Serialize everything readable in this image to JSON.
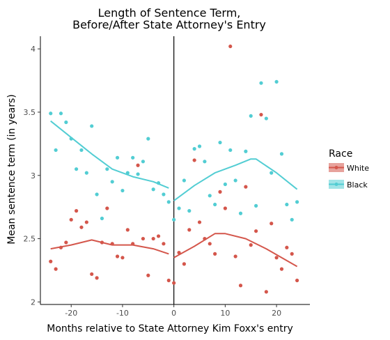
{
  "chart_data": {
    "type": "scatter",
    "title": [
      "Length of Sentence Term,",
      "Before/After State Attorney's Entry"
    ],
    "xlabel": "Months relative to State Attorney Kim Foxx's entry",
    "ylabel": "Mean sentence term (in years)",
    "xlim": [
      -26,
      26.5
    ],
    "ylim": [
      1.98,
      4.1
    ],
    "xticks": [
      -20,
      -10,
      0,
      10,
      20
    ],
    "yticks": [
      2,
      2.5,
      3,
      3.5,
      4
    ],
    "ytick_labels": [
      "2",
      "2.5",
      "3",
      "3.5",
      "4"
    ],
    "vline_x": 0,
    "grid": false,
    "legend": {
      "title": "Race",
      "position": "right"
    },
    "series": [
      {
        "name": "White",
        "color": "#d4564b",
        "points": [
          [
            -24,
            2.32
          ],
          [
            -23,
            2.26
          ],
          [
            -22,
            2.43
          ],
          [
            -21,
            2.47
          ],
          [
            -20,
            2.65
          ],
          [
            -19,
            2.72
          ],
          [
            -18,
            2.59
          ],
          [
            -17,
            2.63
          ],
          [
            -16,
            2.22
          ],
          [
            -15,
            2.19
          ],
          [
            -14,
            2.47
          ],
          [
            -13,
            2.74
          ],
          [
            -12,
            2.46
          ],
          [
            -11,
            2.36
          ],
          [
            -10,
            2.35
          ],
          [
            -9,
            2.57
          ],
          [
            -8,
            2.46
          ],
          [
            -7,
            3.08
          ],
          [
            -6,
            2.5
          ],
          [
            -5,
            2.21
          ],
          [
            -4,
            2.5
          ],
          [
            -3,
            2.52
          ],
          [
            -2,
            2.46
          ],
          [
            -1,
            2.17
          ],
          [
            0,
            2.15
          ],
          [
            1,
            2.39
          ],
          [
            2,
            2.3
          ],
          [
            3,
            2.57
          ],
          [
            4,
            3.12
          ],
          [
            5,
            2.63
          ],
          [
            6,
            2.5
          ],
          [
            7,
            2.46
          ],
          [
            8,
            2.38
          ],
          [
            9,
            2.87
          ],
          [
            10,
            2.74
          ],
          [
            11,
            4.02
          ],
          [
            12,
            2.36
          ],
          [
            13,
            2.13
          ],
          [
            14,
            2.91
          ],
          [
            15,
            2.45
          ],
          [
            16,
            2.56
          ],
          [
            17,
            3.48
          ],
          [
            18,
            2.08
          ],
          [
            19,
            2.62
          ],
          [
            20,
            2.35
          ],
          [
            21,
            2.26
          ],
          [
            22,
            2.43
          ],
          [
            23,
            2.38
          ],
          [
            24,
            2.17
          ]
        ],
        "smooth_before": [
          [
            -24,
            2.42
          ],
          [
            -20,
            2.45
          ],
          [
            -16,
            2.49
          ],
          [
            -12,
            2.45
          ],
          [
            -8,
            2.45
          ],
          [
            -4,
            2.42
          ],
          [
            -1,
            2.38
          ]
        ],
        "smooth_after": [
          [
            0,
            2.35
          ],
          [
            4,
            2.44
          ],
          [
            8,
            2.54
          ],
          [
            10,
            2.54
          ],
          [
            14,
            2.5
          ],
          [
            18,
            2.42
          ],
          [
            24,
            2.28
          ]
        ]
      },
      {
        "name": "Black",
        "color": "#52cdd3",
        "points": [
          [
            -24,
            3.49
          ],
          [
            -23,
            3.2
          ],
          [
            -22,
            3.49
          ],
          [
            -21,
            3.42
          ],
          [
            -20,
            3.29
          ],
          [
            -19,
            3.05
          ],
          [
            -18,
            3.2
          ],
          [
            -17,
            3.02
          ],
          [
            -16,
            3.39
          ],
          [
            -15,
            2.85
          ],
          [
            -14,
            2.66
          ],
          [
            -13,
            3.05
          ],
          [
            -12,
            2.95
          ],
          [
            -11,
            3.14
          ],
          [
            -10,
            2.88
          ],
          [
            -9,
            3.02
          ],
          [
            -8,
            3.14
          ],
          [
            -7,
            3.01
          ],
          [
            -6,
            3.11
          ],
          [
            -5,
            3.29
          ],
          [
            -4,
            2.89
          ],
          [
            -3,
            2.94
          ],
          [
            -2,
            2.85
          ],
          [
            -1,
            2.79
          ],
          [
            0,
            2.65
          ],
          [
            1,
            2.74
          ],
          [
            2,
            2.96
          ],
          [
            3,
            2.72
          ],
          [
            4,
            3.21
          ],
          [
            5,
            3.23
          ],
          [
            6,
            3.11
          ],
          [
            7,
            2.84
          ],
          [
            8,
            2.77
          ],
          [
            9,
            3.26
          ],
          [
            10,
            2.93
          ],
          [
            11,
            3.2
          ],
          [
            12,
            2.96
          ],
          [
            13,
            2.7
          ],
          [
            14,
            3.19
          ],
          [
            15,
            3.47
          ],
          [
            16,
            2.76
          ],
          [
            17,
            3.73
          ],
          [
            18,
            3.45
          ],
          [
            19,
            3.02
          ],
          [
            20,
            3.74
          ],
          [
            21,
            3.17
          ],
          [
            22,
            2.77
          ],
          [
            23,
            2.65
          ],
          [
            24,
            2.79
          ]
        ],
        "smooth_before": [
          [
            -24,
            3.43
          ],
          [
            -20,
            3.3
          ],
          [
            -16,
            3.17
          ],
          [
            -12,
            3.05
          ],
          [
            -8,
            2.99
          ],
          [
            -4,
            2.95
          ],
          [
            -1,
            2.9
          ]
        ],
        "smooth_after": [
          [
            0,
            2.8
          ],
          [
            4,
            2.92
          ],
          [
            8,
            3.02
          ],
          [
            12,
            3.08
          ],
          [
            15,
            3.13
          ],
          [
            16,
            3.13
          ],
          [
            20,
            3.02
          ],
          [
            24,
            2.89
          ]
        ]
      }
    ]
  }
}
